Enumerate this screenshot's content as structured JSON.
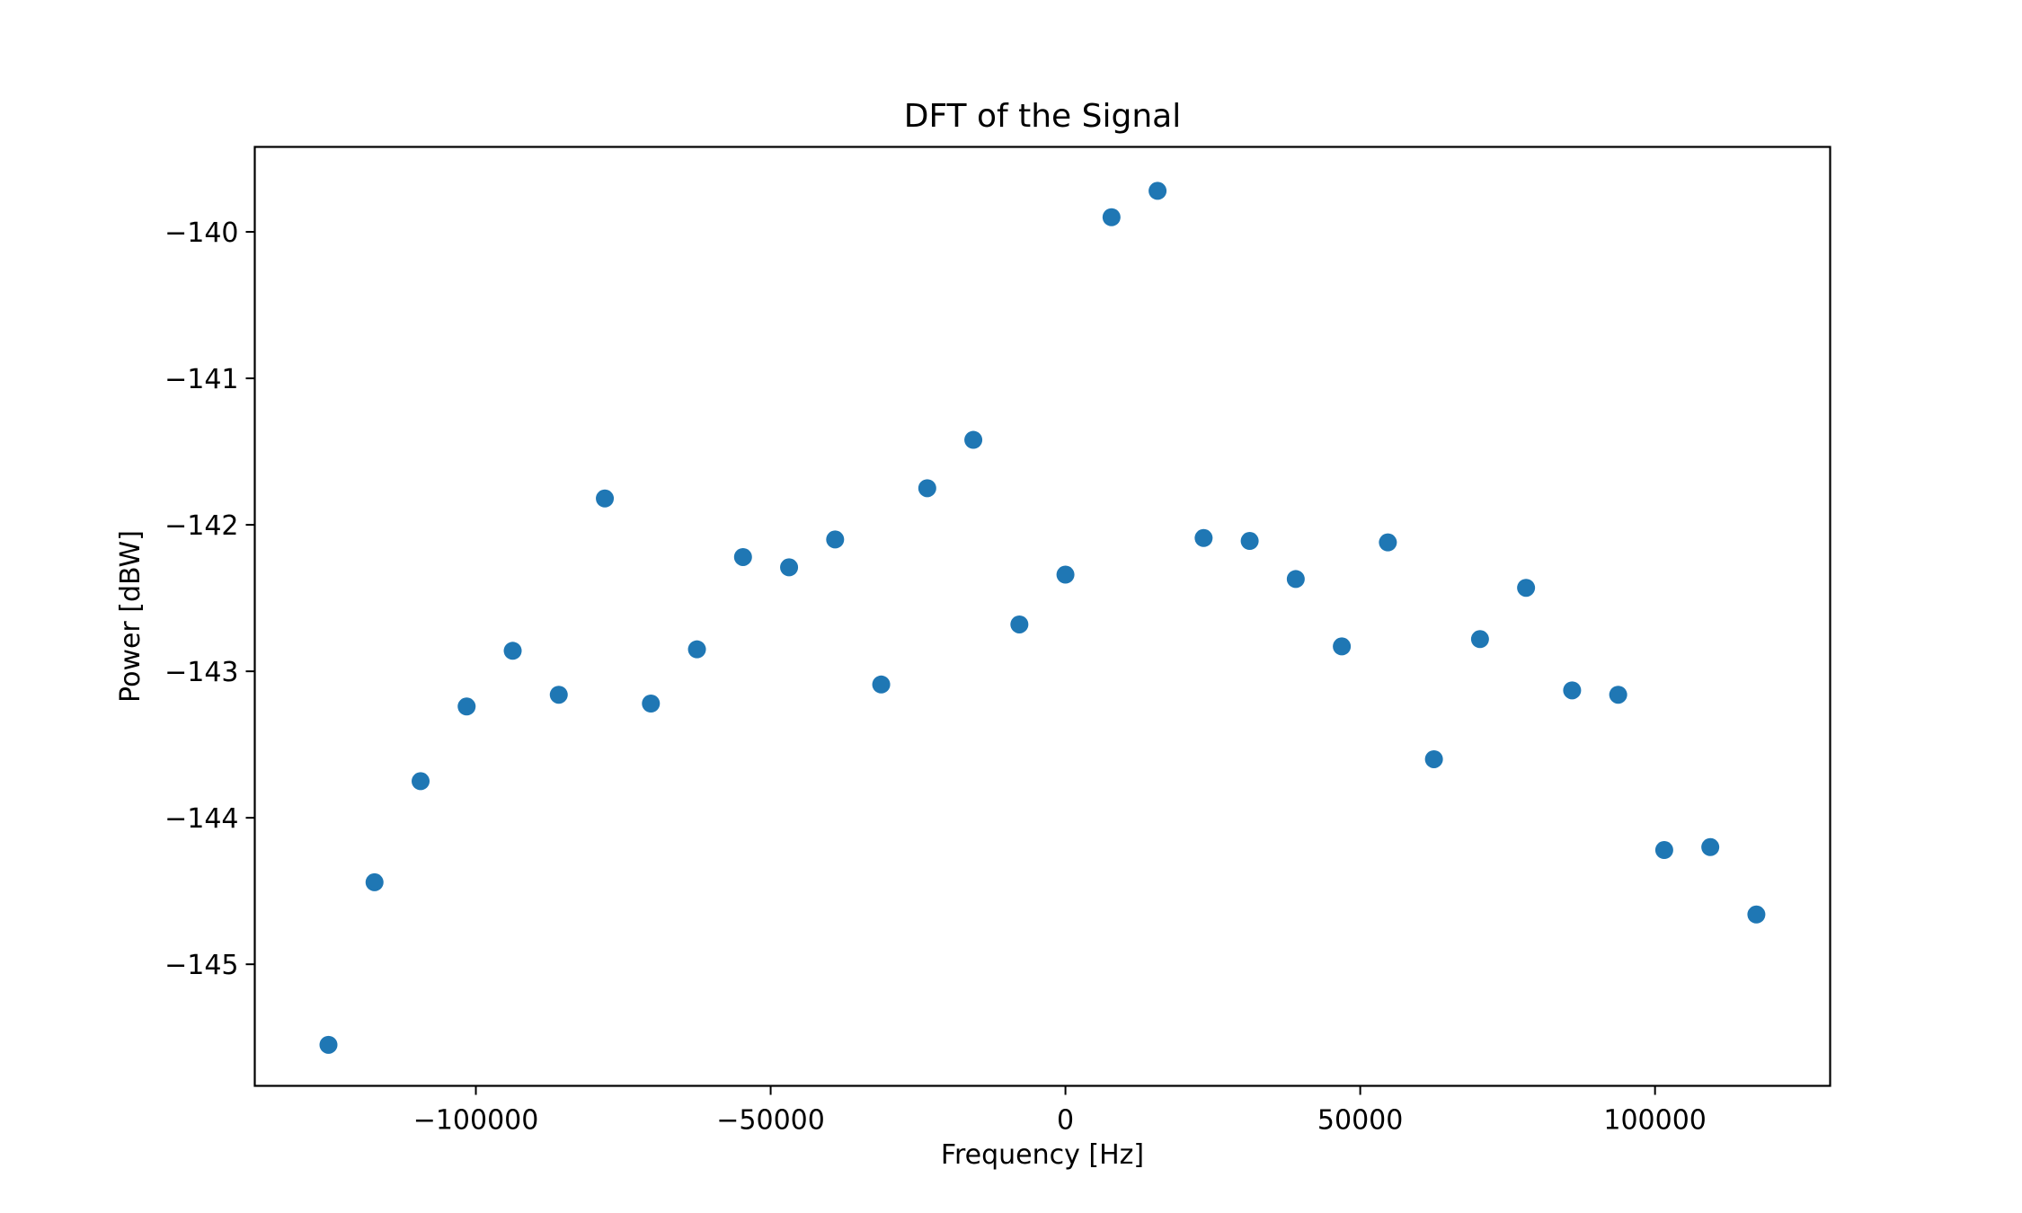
{
  "chart_data": {
    "type": "scatter",
    "title": "DFT of the Signal",
    "xlabel": "Frequency [Hz]",
    "ylabel": "Power [dBW]",
    "xlim": [
      -137500,
      129700
    ],
    "ylim": [
      -145.83,
      -139.42
    ],
    "xticks": [
      {
        "value": -100000,
        "label": "−100000"
      },
      {
        "value": -50000,
        "label": "−50000"
      },
      {
        "value": 0,
        "label": "0"
      },
      {
        "value": 50000,
        "label": "50000"
      },
      {
        "value": 100000,
        "label": "100000"
      }
    ],
    "yticks": [
      {
        "value": -140,
        "label": "−140"
      },
      {
        "value": -141,
        "label": "−141"
      },
      {
        "value": -142,
        "label": "−142"
      },
      {
        "value": -143,
        "label": "−143"
      },
      {
        "value": -144,
        "label": "−144"
      },
      {
        "value": -145,
        "label": "−145"
      }
    ],
    "grid": false,
    "marker_color": "#1f77b4",
    "series": [
      {
        "x": [
          -125000,
          -117188,
          -109375,
          -101563,
          -93750,
          -85938,
          -78125,
          -70313,
          -62500,
          -54688,
          -46875,
          -39063,
          -31250,
          -23438,
          -15625,
          -7813,
          0,
          7813,
          15625,
          23438,
          31250,
          39063,
          46875,
          54688,
          62500,
          70313,
          78125,
          85938,
          93750,
          101563,
          109375,
          117188
        ],
        "y": [
          -145.55,
          -144.44,
          -143.75,
          -143.24,
          -142.86,
          -143.16,
          -141.82,
          -143.22,
          -142.85,
          -142.22,
          -142.29,
          -142.1,
          -143.09,
          -141.75,
          -141.42,
          -142.68,
          -142.34,
          -139.9,
          -139.72,
          -142.09,
          -142.11,
          -142.37,
          -142.83,
          -142.12,
          -143.6,
          -142.78,
          -142.43,
          -143.13,
          -143.16,
          -144.22,
          -144.2,
          -144.66
        ]
      }
    ]
  }
}
